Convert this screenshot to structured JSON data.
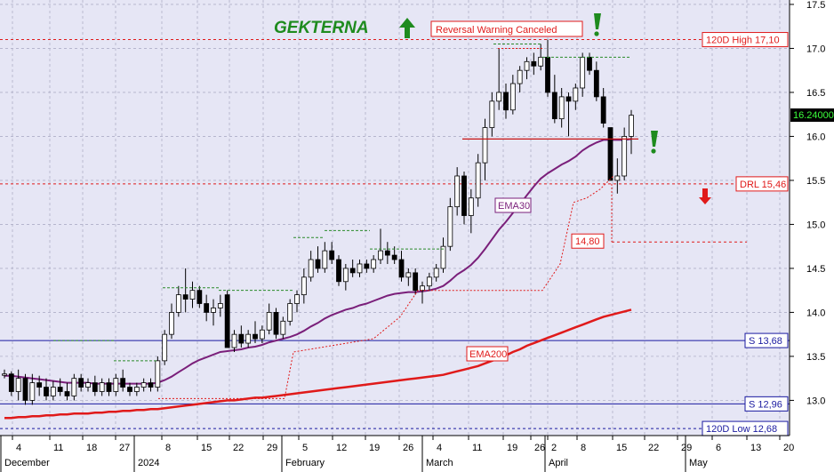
{
  "chart_data": {
    "type": "candlestick",
    "title": "GEKTERNA",
    "title_color": "#1e8b1e",
    "background": "#e6e6f5",
    "grid": true,
    "ylim": [
      12.6,
      17.55
    ],
    "y_ticks": [
      "17.5",
      "17.0",
      "16.5",
      "16.0",
      "15.5",
      "15.0",
      "14.5",
      "14.0",
      "13.5",
      "13.0"
    ],
    "x_ticks": [
      "4",
      "11",
      "18",
      "27",
      "8",
      "15",
      "22",
      "29",
      "5",
      "12",
      "19",
      "26",
      "4",
      "11",
      "19",
      "26",
      "2",
      "8",
      "15",
      "22",
      "29",
      "6",
      "13",
      "20"
    ],
    "months": [
      "December",
      "2024",
      "February",
      "March",
      "April",
      "May"
    ],
    "price_label": "16.24000",
    "candles": [
      [
        13.3,
        13.35,
        13.25,
        13.3
      ],
      [
        13.3,
        13.33,
        13.05,
        13.1
      ],
      [
        13.1,
        13.35,
        13.0,
        13.25
      ],
      [
        13.25,
        13.3,
        12.95,
        13.0
      ],
      [
        13.0,
        13.3,
        12.95,
        13.2
      ],
      [
        13.2,
        13.28,
        13.05,
        13.15
      ],
      [
        13.15,
        13.25,
        13.0,
        13.05
      ],
      [
        13.05,
        13.22,
        13.0,
        13.15
      ],
      [
        13.15,
        13.25,
        13.05,
        13.1
      ],
      [
        13.1,
        13.2,
        13.0,
        13.05
      ],
      [
        13.05,
        13.3,
        13.0,
        13.25
      ],
      [
        13.25,
        13.3,
        13.1,
        13.15
      ],
      [
        13.15,
        13.25,
        13.1,
        13.2
      ],
      [
        13.2,
        13.28,
        13.05,
        13.1
      ],
      [
        13.1,
        13.25,
        13.05,
        13.2
      ],
      [
        13.2,
        13.25,
        13.05,
        13.1
      ],
      [
        13.1,
        13.3,
        13.05,
        13.25
      ],
      [
        13.25,
        13.35,
        13.1,
        13.15
      ],
      [
        13.15,
        13.2,
        13.05,
        13.1
      ],
      [
        13.1,
        13.2,
        13.05,
        13.15
      ],
      [
        13.15,
        13.25,
        13.1,
        13.2
      ],
      [
        13.2,
        13.25,
        13.1,
        13.15
      ],
      [
        13.15,
        13.5,
        13.1,
        13.45
      ],
      [
        13.45,
        13.8,
        13.4,
        13.75
      ],
      [
        13.75,
        14.1,
        13.7,
        14.0
      ],
      [
        14.0,
        14.3,
        13.95,
        14.2
      ],
      [
        14.2,
        14.5,
        14.0,
        14.15
      ],
      [
        14.15,
        14.35,
        14.05,
        14.25
      ],
      [
        14.25,
        14.3,
        14.05,
        14.1
      ],
      [
        14.1,
        14.2,
        13.9,
        14.0
      ],
      [
        14.0,
        14.15,
        13.85,
        14.05
      ],
      [
        14.05,
        14.2,
        13.95,
        14.1
      ],
      [
        14.2,
        14.25,
        13.6,
        13.6
      ],
      [
        13.6,
        13.8,
        13.55,
        13.75
      ],
      [
        13.75,
        13.85,
        13.6,
        13.65
      ],
      [
        13.65,
        13.8,
        13.6,
        13.75
      ],
      [
        13.75,
        13.9,
        13.65,
        13.7
      ],
      [
        13.7,
        13.85,
        13.65,
        13.8
      ],
      [
        13.8,
        14.1,
        13.75,
        14.0
      ],
      [
        14.0,
        14.05,
        13.7,
        13.75
      ],
      [
        13.75,
        13.95,
        13.7,
        13.9
      ],
      [
        13.9,
        14.15,
        13.85,
        14.1
      ],
      [
        14.1,
        14.25,
        14.0,
        14.2
      ],
      [
        14.2,
        14.5,
        14.1,
        14.4
      ],
      [
        14.4,
        14.7,
        14.35,
        14.6
      ],
      [
        14.6,
        14.75,
        14.45,
        14.5
      ],
      [
        14.5,
        14.8,
        14.45,
        14.7
      ],
      [
        14.7,
        14.8,
        14.55,
        14.6
      ],
      [
        14.6,
        14.65,
        14.3,
        14.35
      ],
      [
        14.35,
        14.55,
        14.25,
        14.5
      ],
      [
        14.5,
        14.6,
        14.4,
        14.45
      ],
      [
        14.45,
        14.6,
        14.4,
        14.55
      ],
      [
        14.55,
        14.6,
        14.45,
        14.5
      ],
      [
        14.5,
        14.65,
        14.45,
        14.6
      ],
      [
        14.6,
        14.95,
        14.55,
        14.7
      ],
      [
        14.7,
        14.8,
        14.55,
        14.65
      ],
      [
        14.65,
        14.75,
        14.55,
        14.6
      ],
      [
        14.6,
        14.7,
        14.35,
        14.4
      ],
      [
        14.4,
        14.5,
        14.3,
        14.45
      ],
      [
        14.45,
        14.5,
        14.2,
        14.25
      ],
      [
        14.25,
        14.35,
        14.1,
        14.3
      ],
      [
        14.3,
        14.45,
        14.25,
        14.4
      ],
      [
        14.4,
        14.55,
        14.35,
        14.5
      ],
      [
        14.5,
        14.85,
        14.45,
        14.75
      ],
      [
        14.75,
        15.3,
        14.7,
        15.2
      ],
      [
        15.2,
        15.65,
        15.1,
        15.55
      ],
      [
        15.55,
        15.6,
        15.0,
        15.1
      ],
      [
        15.1,
        15.4,
        14.9,
        15.3
      ],
      [
        15.3,
        15.8,
        15.2,
        15.7
      ],
      [
        15.7,
        16.2,
        15.5,
        16.1
      ],
      [
        16.1,
        16.5,
        16.0,
        16.4
      ],
      [
        16.4,
        17.0,
        16.3,
        16.5
      ],
      [
        16.5,
        16.6,
        16.2,
        16.3
      ],
      [
        16.3,
        16.7,
        16.25,
        16.6
      ],
      [
        16.6,
        16.8,
        16.5,
        16.75
      ],
      [
        16.75,
        16.9,
        16.65,
        16.85
      ],
      [
        16.85,
        16.95,
        16.7,
        16.8
      ],
      [
        16.8,
        17.05,
        16.75,
        16.9
      ],
      [
        16.9,
        17.1,
        16.45,
        16.5
      ],
      [
        16.5,
        16.7,
        16.15,
        16.2
      ],
      [
        16.2,
        16.55,
        16.1,
        16.45
      ],
      [
        16.45,
        16.5,
        16.0,
        16.4
      ],
      [
        16.4,
        16.6,
        16.3,
        16.55
      ],
      [
        16.55,
        16.95,
        16.45,
        16.9
      ],
      [
        16.9,
        16.95,
        16.7,
        16.75
      ],
      [
        16.75,
        16.85,
        16.4,
        16.45
      ],
      [
        16.45,
        16.55,
        16.1,
        16.15
      ],
      [
        16.1,
        16.1,
        15.5,
        15.5
      ],
      [
        15.5,
        15.75,
        15.35,
        15.55
      ],
      [
        15.55,
        16.1,
        15.5,
        16.0
      ],
      [
        16.0,
        16.3,
        15.8,
        16.24
      ]
    ],
    "series": [
      {
        "name": "EMA30",
        "color": "#7a1f7a",
        "values": [
          13.28,
          13.28,
          13.27,
          13.26,
          13.25,
          13.24,
          13.23,
          13.22,
          13.21,
          13.2,
          13.2,
          13.2,
          13.2,
          13.19,
          13.19,
          13.19,
          13.19,
          13.19,
          13.19,
          13.19,
          13.19,
          13.19,
          13.2,
          13.23,
          13.27,
          13.32,
          13.37,
          13.42,
          13.46,
          13.49,
          13.52,
          13.55,
          13.56,
          13.57,
          13.58,
          13.6,
          13.61,
          13.63,
          13.66,
          13.68,
          13.7,
          13.72,
          13.75,
          13.79,
          13.84,
          13.88,
          13.93,
          13.97,
          14.0,
          14.03,
          14.05,
          14.08,
          14.1,
          14.13,
          14.16,
          14.19,
          14.21,
          14.22,
          14.23,
          14.23,
          14.24,
          14.25,
          14.27,
          14.3,
          14.36,
          14.43,
          14.48,
          14.54,
          14.62,
          14.72,
          14.83,
          14.94,
          15.03,
          15.13,
          15.23,
          15.33,
          15.43,
          15.52,
          15.58,
          15.63,
          15.68,
          15.72,
          15.77,
          15.84,
          15.89,
          15.93,
          15.96,
          15.96,
          15.96,
          15.96,
          15.97
        ]
      },
      {
        "name": "EMA200",
        "color": "#e01a1a",
        "values": [
          12.8,
          12.8,
          12.81,
          12.81,
          12.82,
          12.82,
          12.83,
          12.83,
          12.84,
          12.84,
          12.85,
          12.85,
          12.85,
          12.86,
          12.86,
          12.87,
          12.87,
          12.88,
          12.88,
          12.89,
          12.89,
          12.9,
          12.9,
          12.91,
          12.92,
          12.93,
          12.94,
          12.95,
          12.96,
          12.97,
          12.98,
          12.99,
          13.0,
          13.0,
          13.01,
          13.02,
          13.03,
          13.03,
          13.04,
          13.05,
          13.06,
          13.07,
          13.08,
          13.09,
          13.1,
          13.11,
          13.12,
          13.13,
          13.14,
          13.15,
          13.16,
          13.17,
          13.18,
          13.19,
          13.2,
          13.21,
          13.22,
          13.23,
          13.24,
          13.25,
          13.26,
          13.27,
          13.28,
          13.29,
          13.31,
          13.33,
          13.35,
          13.37,
          13.39,
          13.42,
          13.45,
          13.48,
          13.51,
          13.55,
          13.58,
          13.62,
          13.65,
          13.68,
          13.71,
          13.74,
          13.77,
          13.8,
          13.83,
          13.86,
          13.89,
          13.92,
          13.95,
          13.97,
          13.99,
          14.01,
          14.03
        ]
      }
    ],
    "levels": [
      {
        "label": "120D High 17,10",
        "value": 17.1,
        "style": "dashed-red"
      },
      {
        "label": "DRL 15,46",
        "value": 15.46,
        "style": "dashed-red"
      },
      {
        "label": "S 13,68",
        "value": 13.68,
        "style": "solid-blue"
      },
      {
        "label": "S 12,96",
        "value": 12.96,
        "style": "solid-blue"
      },
      {
        "label": "120D Low 12,68",
        "value": 12.68,
        "style": "dashed-blue"
      }
    ],
    "annotations": {
      "reversal": "Reversal Warning Canceled",
      "level_14_80": "14,80",
      "ema30_label": "EMA30",
      "ema200_label": "EMA200"
    }
  }
}
